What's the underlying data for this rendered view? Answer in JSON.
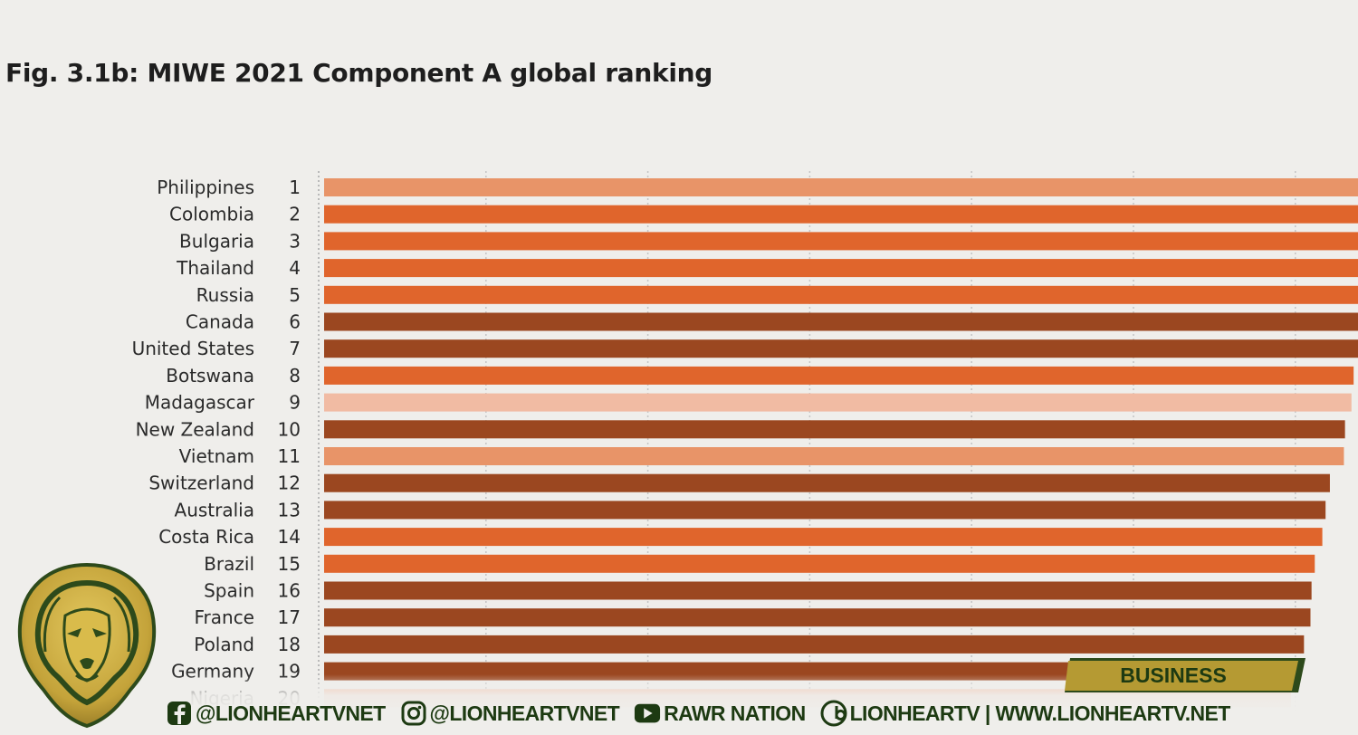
{
  "title": "Fig. 3.1b: MIWE 2021 Component A global ranking",
  "chart_data": {
    "type": "bar",
    "orientation": "horizontal",
    "title": "Fig. 3.1b: MIWE 2021 Component A global ranking",
    "xlim": [
      0,
      100
    ],
    "grid": true,
    "categories": [
      "Philippines",
      "Colombia",
      "Bulgaria",
      "Thailand",
      "Russia",
      "Canada",
      "United States",
      "Botswana",
      "Madagascar",
      "New Zealand",
      "Vietnam",
      "Switzerland",
      "Australia",
      "Costa Rica",
      "Brazil",
      "Spain",
      "France",
      "Poland",
      "Germany",
      "Nigeria"
    ],
    "ranks": [
      "1",
      "2",
      "3",
      "4",
      "5",
      "6",
      "7",
      "8",
      "9",
      "10",
      "11",
      "12",
      "13",
      "14",
      "15",
      "16",
      "17",
      "18",
      "19",
      "20"
    ],
    "values": [
      100,
      100,
      100,
      100,
      99.4,
      97.8,
      96.2,
      95.4,
      95.2,
      94.6,
      94.5,
      93.2,
      92.8,
      92.5,
      91.8,
      91.5,
      91.4,
      90.8,
      90.2,
      89.6
    ],
    "bar_colors": [
      "#e89468",
      "#e0652c",
      "#e0652c",
      "#e0652c",
      "#e0652c",
      "#9b4720",
      "#9b4720",
      "#e0652c",
      "#f1bba3",
      "#9b4720",
      "#e89468",
      "#9b4720",
      "#9b4720",
      "#e0652c",
      "#e0652c",
      "#9b4720",
      "#9b4720",
      "#9b4720",
      "#9b4720",
      "#f1bba3"
    ]
  },
  "branding": {
    "logo_icon": "lion-head-icon",
    "tag": "BUSINESS",
    "social": [
      {
        "icon": "facebook-icon",
        "text": "@LIONHEARTVNET"
      },
      {
        "icon": "instagram-icon",
        "text": "@LIONHEARTVNET"
      },
      {
        "icon": "youtube-icon",
        "text": "RAWR NATION"
      },
      {
        "icon": "dailymotion-icon",
        "text": "LIONHEARTV | WWW.LIONHEARTV.NET"
      }
    ],
    "colors": {
      "green": "#1d3a12",
      "gold": "#b59a33"
    }
  }
}
